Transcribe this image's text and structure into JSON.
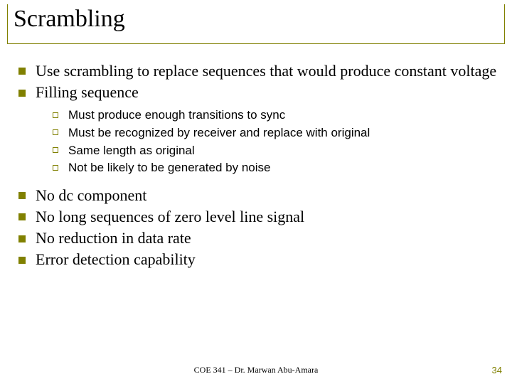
{
  "title": "Scrambling",
  "bullets1": [
    "Use scrambling to replace sequences that would produce constant voltage",
    "Filling sequence"
  ],
  "sub_bullets": [
    "Must produce enough transitions to sync",
    "Must be recognized by receiver and replace with original",
    "Same length as original",
    "Not be likely to be generated by noise"
  ],
  "bullets2": [
    "No dc component",
    "No long sequences of zero level line signal",
    "No reduction in data rate",
    "Error detection capability"
  ],
  "footer": "COE 341 – Dr. Marwan Abu-Amara",
  "page_number": "34",
  "colors": {
    "accent": "#808000",
    "text": "#000000",
    "background": "#ffffff"
  }
}
